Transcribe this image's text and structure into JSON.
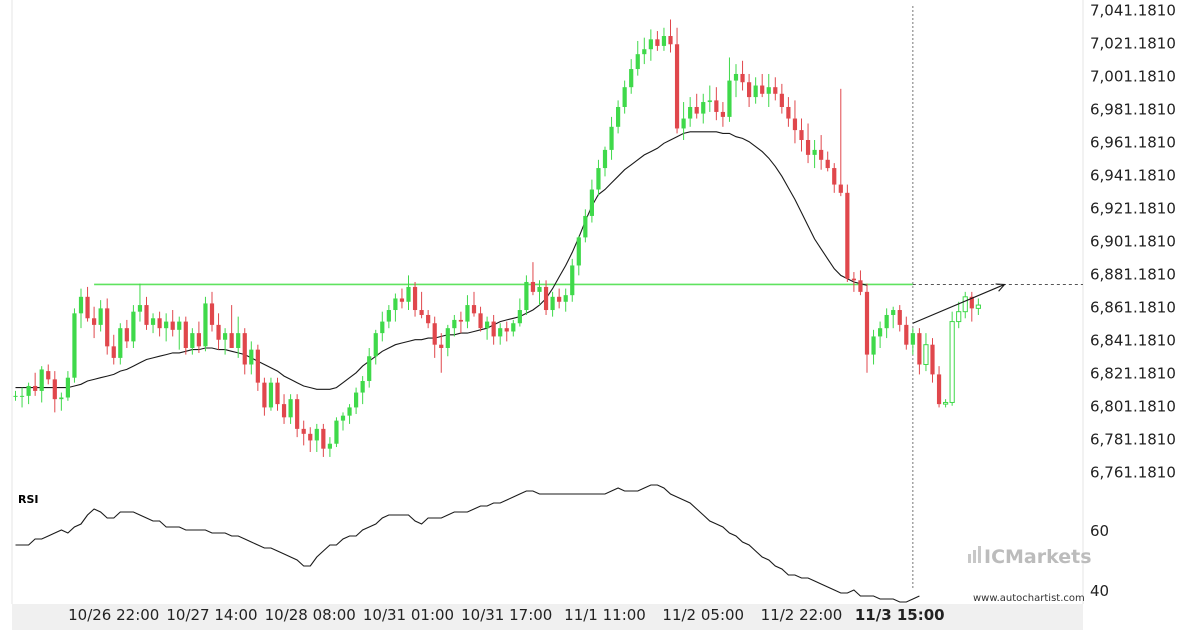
{
  "chart_data": {
    "type": "candlestick",
    "price_axis": {
      "ylim": [
        6751.181,
        7043.181
      ],
      "tick_labels": [
        "7,041.1810",
        "7,021.1810",
        "7,001.1810",
        "6,981.1810",
        "6,961.1810",
        "6,941.1810",
        "6,921.1810",
        "6,901.1810",
        "6,881.1810",
        "6,861.1810",
        "6,841.1810",
        "6,821.1810",
        "6,801.1810",
        "6,781.1810",
        "6,761.1810"
      ],
      "tick_values": [
        7041.181,
        7021.181,
        7001.181,
        6981.181,
        6961.181,
        6941.181,
        6921.181,
        6901.181,
        6881.181,
        6861.181,
        6841.181,
        6821.181,
        6801.181,
        6781.181,
        6761.181
      ]
    },
    "time_axis": {
      "tick_labels": [
        "10/26 22:00",
        "10/27 14:00",
        "10/28 08:00",
        "10/31 01:00",
        "10/31 17:00",
        "11/1 11:00",
        "11/2 05:00",
        "11/2 22:00",
        "11/3 15:00"
      ],
      "tick_candle_index": [
        15,
        30,
        45,
        60,
        75,
        90,
        105,
        120,
        135
      ],
      "highlighted_label": "11/3 15:00"
    },
    "support_resistance_level": 6874.5,
    "candles_ohlc": [
      [
        6807,
        6810,
        6804,
        6807
      ],
      [
        6807,
        6812,
        6800,
        6807
      ],
      [
        6807,
        6815,
        6802,
        6813
      ],
      [
        6813,
        6821,
        6807,
        6810
      ],
      [
        6810,
        6825,
        6803,
        6823
      ],
      [
        6822,
        6826,
        6814,
        6817
      ],
      [
        6817,
        6822,
        6797,
        6805
      ],
      [
        6805,
        6809,
        6798,
        6806
      ],
      [
        6806,
        6822,
        6804,
        6818
      ],
      [
        6818,
        6860,
        6815,
        6857
      ],
      [
        6857,
        6872,
        6848,
        6867
      ],
      [
        6867,
        6873,
        6852,
        6854
      ],
      [
        6854,
        6861,
        6842,
        6850
      ],
      [
        6850,
        6865,
        6846,
        6860
      ],
      [
        6860,
        6866,
        6832,
        6837
      ],
      [
        6837,
        6844,
        6826,
        6830
      ],
      [
        6830,
        6851,
        6826,
        6848
      ],
      [
        6848,
        6853,
        6836,
        6840
      ],
      [
        6840,
        6862,
        6836,
        6858
      ],
      [
        6858,
        6875,
        6852,
        6862
      ],
      [
        6862,
        6867,
        6847,
        6850
      ],
      [
        6850,
        6857,
        6845,
        6854
      ],
      [
        6854,
        6858,
        6843,
        6848
      ],
      [
        6848,
        6857,
        6840,
        6852
      ],
      [
        6852,
        6859,
        6843,
        6847
      ],
      [
        6847,
        6855,
        6835,
        6852
      ],
      [
        6852,
        6855,
        6832,
        6836
      ],
      [
        6836,
        6848,
        6832,
        6845
      ],
      [
        6845,
        6852,
        6833,
        6837
      ],
      [
        6837,
        6867,
        6834,
        6863
      ],
      [
        6863,
        6870,
        6846,
        6850
      ],
      [
        6850,
        6857,
        6835,
        6841
      ],
      [
        6841,
        6848,
        6832,
        6845
      ],
      [
        6845,
        6862,
        6836,
        6836
      ],
      [
        6836,
        6855,
        6830,
        6845
      ],
      [
        6845,
        6848,
        6820,
        6826
      ],
      [
        6826,
        6840,
        6820,
        6835
      ],
      [
        6835,
        6838,
        6810,
        6815
      ],
      [
        6815,
        6818,
        6795,
        6800
      ],
      [
        6800,
        6818,
        6798,
        6815
      ],
      [
        6815,
        6818,
        6798,
        6802
      ],
      [
        6802,
        6808,
        6790,
        6794
      ],
      [
        6794,
        6808,
        6790,
        6805
      ],
      [
        6805,
        6808,
        6782,
        6787
      ],
      [
        6787,
        6792,
        6777,
        6784
      ],
      [
        6784,
        6788,
        6773,
        6780
      ],
      [
        6780,
        6790,
        6773,
        6787
      ],
      [
        6787,
        6790,
        6770,
        6775
      ],
      [
        6775,
        6782,
        6770,
        6778
      ],
      [
        6778,
        6794,
        6776,
        6792
      ],
      [
        6792,
        6797,
        6786,
        6795
      ],
      [
        6795,
        6802,
        6790,
        6800
      ],
      [
        6800,
        6812,
        6796,
        6809
      ],
      [
        6809,
        6819,
        6802,
        6816
      ],
      [
        6816,
        6836,
        6812,
        6831
      ],
      [
        6831,
        6847,
        6826,
        6845
      ],
      [
        6845,
        6858,
        6840,
        6852
      ],
      [
        6852,
        6862,
        6848,
        6859
      ],
      [
        6859,
        6869,
        6852,
        6866
      ],
      [
        6866,
        6872,
        6860,
        6864
      ],
      [
        6864,
        6880,
        6859,
        6873
      ],
      [
        6873,
        6876,
        6855,
        6859
      ],
      [
        6859,
        6870,
        6854,
        6856
      ],
      [
        6856,
        6859,
        6848,
        6851
      ],
      [
        6851,
        6855,
        6830,
        6838
      ],
      [
        6838,
        6845,
        6821,
        6836
      ],
      [
        6836,
        6850,
        6831,
        6848
      ],
      [
        6848,
        6856,
        6843,
        6853
      ],
      [
        6853,
        6858,
        6845,
        6852
      ],
      [
        6852,
        6868,
        6848,
        6862
      ],
      [
        6862,
        6870,
        6855,
        6857
      ],
      [
        6857,
        6861,
        6846,
        6848
      ],
      [
        6848,
        6855,
        6841,
        6852
      ],
      [
        6852,
        6856,
        6838,
        6843
      ],
      [
        6843,
        6851,
        6838,
        6848
      ],
      [
        6848,
        6852,
        6840,
        6846
      ],
      [
        6846,
        6853,
        6843,
        6851
      ],
      [
        6851,
        6866,
        6849,
        6859
      ],
      [
        6859,
        6880,
        6856,
        6876
      ],
      [
        6876,
        6888,
        6868,
        6870
      ],
      [
        6870,
        6877,
        6862,
        6873
      ],
      [
        6873,
        6877,
        6856,
        6859
      ],
      [
        6859,
        6870,
        6855,
        6867
      ],
      [
        6867,
        6872,
        6860,
        6864
      ],
      [
        6864,
        6872,
        6858,
        6868
      ],
      [
        6868,
        6890,
        6864,
        6886
      ],
      [
        6886,
        6904,
        6880,
        6903
      ],
      [
        6903,
        6920,
        6900,
        6916
      ],
      [
        6916,
        6938,
        6912,
        6932
      ],
      [
        6932,
        6950,
        6928,
        6945
      ],
      [
        6945,
        6958,
        6940,
        6956
      ],
      [
        6956,
        6976,
        6950,
        6970
      ],
      [
        6970,
        6986,
        6966,
        6982
      ],
      [
        6982,
        6998,
        6978,
        6994
      ],
      [
        6994,
        7011,
        6990,
        7005
      ],
      [
        7005,
        7022,
        7001,
        7014
      ],
      [
        7014,
        7024,
        7008,
        7017
      ],
      [
        7017,
        7029,
        7010,
        7023
      ],
      [
        7023,
        7028,
        7016,
        7019
      ],
      [
        7019,
        7030,
        7016,
        7025
      ],
      [
        7025,
        7035,
        7015,
        7020
      ],
      [
        7020,
        7030,
        6966,
        6969
      ],
      [
        6969,
        6985,
        6962,
        6975
      ],
      [
        6975,
        6988,
        6970,
        6982
      ],
      [
        6982,
        6990,
        6975,
        6978
      ],
      [
        6978,
        6990,
        6972,
        6985
      ],
      [
        6985,
        6995,
        6979,
        6986
      ],
      [
        6986,
        6994,
        6974,
        6979
      ],
      [
        6979,
        6985,
        6970,
        6976
      ],
      [
        6976,
        7012,
        6973,
        6998
      ],
      [
        6998,
        7008,
        6988,
        7002
      ],
      [
        7002,
        7010,
        6992,
        6997
      ],
      [
        6997,
        7002,
        6982,
        6988
      ],
      [
        6988,
        7000,
        6984,
        6995
      ],
      [
        6995,
        7002,
        6988,
        6990
      ],
      [
        6990,
        7002,
        6982,
        6994
      ],
      [
        6994,
        7000,
        6986,
        6990
      ],
      [
        6990,
        6996,
        6978,
        6982
      ],
      [
        6982,
        6988,
        6970,
        6975
      ],
      [
        6975,
        6986,
        6960,
        6968
      ],
      [
        6968,
        6975,
        6955,
        6962
      ],
      [
        6962,
        6972,
        6948,
        6953
      ],
      [
        6953,
        6962,
        6945,
        6956
      ],
      [
        6956,
        6965,
        6944,
        6950
      ],
      [
        6950,
        6955,
        6943,
        6945
      ],
      [
        6945,
        6948,
        6930,
        6935
      ],
      [
        6935,
        6993,
        6928,
        6930
      ],
      [
        6930,
        6935,
        6876,
        6878
      ],
      [
        6878,
        6882,
        6870,
        6877
      ],
      [
        6877,
        6883,
        6868,
        6870
      ],
      [
        6870,
        6875,
        6821,
        6832
      ],
      [
        6832,
        6847,
        6826,
        6843
      ],
      [
        6843,
        6852,
        6836,
        6848
      ],
      [
        6848,
        6860,
        6842,
        6856
      ],
      [
        6856,
        6861,
        6848,
        6859
      ],
      [
        6859,
        6862,
        6846,
        6850
      ],
      [
        6850,
        6855,
        6835,
        6838
      ],
      [
        6838,
        6848,
        6832,
        6845
      ],
      [
        6845,
        6848,
        6820,
        6826
      ],
      [
        6826,
        6845,
        6822,
        6838
      ],
      [
        6838,
        6842,
        6815,
        6820
      ],
      [
        6820,
        6825,
        6800,
        6802
      ],
      [
        6802,
        6805,
        6800,
        6803
      ],
      [
        6803,
        6858,
        6801,
        6852
      ],
      [
        6852,
        6864,
        6848,
        6858
      ],
      [
        6858,
        6870,
        6854,
        6867
      ],
      [
        6867,
        6870,
        6852,
        6860
      ],
      [
        6860,
        6866,
        6856,
        6862
      ]
    ],
    "moving_average": [
      6812,
      6812,
      6812,
      6812,
      6812,
      6812,
      6812,
      6812,
      6812,
      6813,
      6814,
      6816,
      6817,
      6818,
      6819,
      6820,
      6822,
      6823,
      6825,
      6827,
      6829,
      6830,
      6831,
      6832,
      6833,
      6833,
      6834,
      6835,
      6835,
      6836,
      6836,
      6835,
      6835,
      6834,
      6833,
      6832,
      6830,
      6828,
      6826,
      6824,
      6822,
      6819,
      6817,
      6815,
      6813,
      6812,
      6811,
      6811,
      6811,
      6812,
      6815,
      6818,
      6821,
      6825,
      6828,
      6831,
      6834,
      6836,
      6838,
      6839,
      6840,
      6841,
      6841,
      6842,
      6842,
      6843,
      6844,
      6844,
      6845,
      6845,
      6846,
      6847,
      6848,
      6850,
      6852,
      6853,
      6854,
      6855,
      6857,
      6859,
      6862,
      6866,
      6872,
      6879,
      6886,
      6894,
      6903,
      6913,
      6922,
      6929,
      6932,
      6936,
      6940,
      6944,
      6947,
      6950,
      6953,
      6955,
      6957,
      6960,
      6962,
      6964,
      6966,
      6967,
      6967,
      6967,
      6967,
      6967,
      6966,
      6966,
      6964,
      6963,
      6961,
      6958,
      6955,
      6951,
      6946,
      6940,
      6933,
      6926,
      6918,
      6910,
      6902,
      6896,
      6890,
      6884,
      6880,
      6878,
      6876,
      6875,
      6874
    ],
    "projection_line": {
      "from_index": 137,
      "from_value": 6851,
      "to_index": 151,
      "to_value": 6874.5
    },
    "current_time_index": 137,
    "rsi": {
      "title": "RSI",
      "ylim": [
        30,
        80
      ],
      "tick_labels": [
        "60",
        "40"
      ],
      "tick_values": [
        60,
        40
      ],
      "values": [
        55,
        55,
        55,
        57,
        57,
        58,
        59,
        60,
        59,
        61,
        62,
        65,
        67,
        66,
        64,
        64,
        66,
        66,
        66,
        65,
        64,
        63,
        63,
        61,
        61,
        61,
        60,
        60,
        60,
        60,
        59,
        59,
        59,
        58,
        58,
        57,
        56,
        55,
        54,
        54,
        53,
        52,
        51,
        50,
        48,
        48,
        51,
        53,
        55,
        55,
        57,
        58,
        58,
        60,
        61,
        62,
        64,
        65,
        65,
        65,
        65,
        63,
        62,
        64,
        64,
        64,
        65,
        66,
        66,
        66,
        67,
        68,
        68,
        69,
        69,
        70,
        71,
        72,
        73,
        73,
        72,
        72,
        72,
        72,
        72,
        72,
        72,
        72,
        72,
        72,
        72,
        73,
        74,
        73,
        73,
        73,
        74,
        75,
        75,
        74,
        72,
        71,
        70,
        69,
        67,
        65,
        63,
        62,
        61,
        59,
        58,
        56,
        55,
        53,
        51,
        50,
        48,
        47,
        45,
        45,
        44,
        44,
        43,
        42,
        41,
        40,
        39,
        39,
        40,
        38,
        38,
        38,
        37,
        37,
        37,
        36,
        36,
        37,
        38
      ]
    },
    "brand_logo": "ICMarkets",
    "watermark": "www.autochartist.com"
  }
}
